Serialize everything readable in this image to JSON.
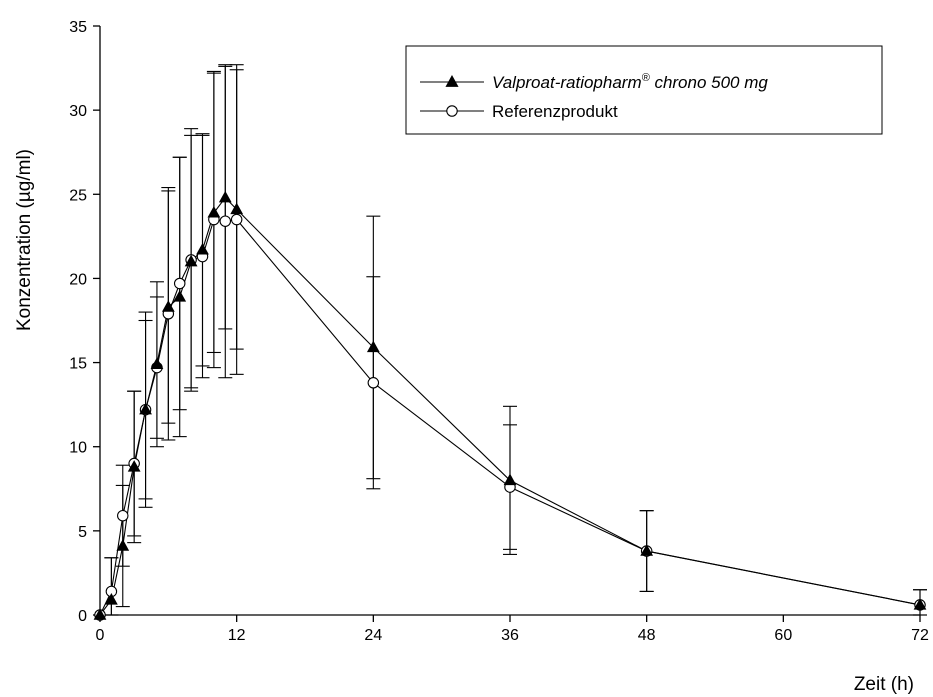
{
  "chart_data": {
    "type": "line",
    "xlabel": "Zeit (h)",
    "ylabel": "Konzentration (µg/ml)",
    "xlim": [
      0,
      72
    ],
    "ylim": [
      0,
      35
    ],
    "xticks": [
      0,
      12,
      24,
      36,
      48,
      60,
      72
    ],
    "yticks": [
      0,
      5,
      10,
      15,
      20,
      25,
      30,
      35
    ],
    "grid": false,
    "legend_position": "top-right",
    "series": [
      {
        "name": "Valproat-ratiopharm® chrono 500 mg",
        "name_main": "Valproat-ratiopharm",
        "name_sup": "®",
        "name_rest": " chrono 500 mg",
        "marker": "filled-triangle",
        "points": [
          {
            "x": 0,
            "y": 0.0,
            "err": 0
          },
          {
            "x": 1,
            "y": 0.9,
            "err": 2.5
          },
          {
            "x": 2,
            "y": 4.1,
            "err": 3.6
          },
          {
            "x": 3,
            "y": 8.8,
            "err": 4.5
          },
          {
            "x": 4,
            "y": 12.2,
            "err": 5.3
          },
          {
            "x": 5,
            "y": 14.9,
            "err": 4.9
          },
          {
            "x": 6,
            "y": 18.3,
            "err": 6.9
          },
          {
            "x": 7,
            "y": 18.9,
            "err": 8.3
          },
          {
            "x": 8,
            "y": 21.0,
            "err": 7.5
          },
          {
            "x": 9,
            "y": 21.7,
            "err": 6.9
          },
          {
            "x": 10,
            "y": 23.9,
            "err": 8.3
          },
          {
            "x": 11,
            "y": 24.8,
            "err": 7.8
          },
          {
            "x": 12,
            "y": 24.1,
            "err": 8.3
          },
          {
            "x": 24,
            "y": 15.9,
            "err": 7.8
          },
          {
            "x": 36,
            "y": 8.0,
            "err": 4.4
          },
          {
            "x": 48,
            "y": 3.8,
            "err": 2.4
          },
          {
            "x": 72,
            "y": 0.6,
            "err": 0.9
          }
        ]
      },
      {
        "name": "Referenzprodukt",
        "marker": "open-circle",
        "points": [
          {
            "x": 0,
            "y": 0.0,
            "err": 0
          },
          {
            "x": 1,
            "y": 1.4,
            "err": 2.0
          },
          {
            "x": 2,
            "y": 5.9,
            "err": 3.0
          },
          {
            "x": 3,
            "y": 9.0,
            "err": 4.3
          },
          {
            "x": 4,
            "y": 12.2,
            "err": 5.8
          },
          {
            "x": 5,
            "y": 14.7,
            "err": 4.2
          },
          {
            "x": 6,
            "y": 17.9,
            "err": 7.5
          },
          {
            "x": 7,
            "y": 19.7,
            "err": 7.5
          },
          {
            "x": 8,
            "y": 21.1,
            "err": 7.8
          },
          {
            "x": 9,
            "y": 21.3,
            "err": 7.2
          },
          {
            "x": 10,
            "y": 23.5,
            "err": 8.8
          },
          {
            "x": 11,
            "y": 23.4,
            "err": 9.3
          },
          {
            "x": 12,
            "y": 23.5,
            "err": 9.2
          },
          {
            "x": 24,
            "y": 13.8,
            "err": 6.3
          },
          {
            "x": 36,
            "y": 7.6,
            "err": 3.7
          },
          {
            "x": 48,
            "y": 3.8,
            "err": 2.4
          },
          {
            "x": 72,
            "y": 0.6,
            "err": 0.9
          }
        ]
      }
    ]
  }
}
